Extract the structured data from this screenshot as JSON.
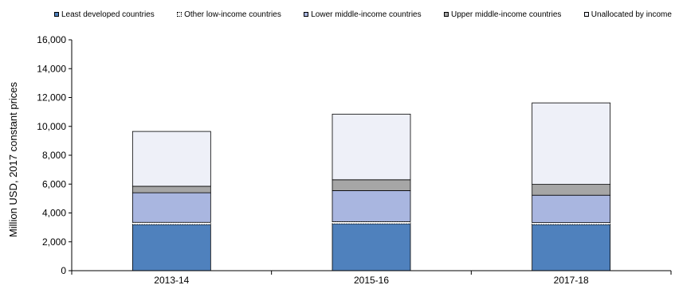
{
  "chart_data": {
    "type": "bar",
    "stacked": true,
    "title": "",
    "xlabel": "",
    "ylabel": "Million USD, 2017 constant prices",
    "ylim": [
      0,
      16000
    ],
    "yticks": [
      "0",
      "2,000",
      "4,000",
      "6,000",
      "8,000",
      "10,000",
      "12,000",
      "14,000",
      "16,000"
    ],
    "categories": [
      "2013-14",
      "2015-16",
      "2017-18"
    ],
    "legend_position": "top",
    "grid": false,
    "series": [
      {
        "name": "Least developed countries",
        "color": "#4f81bd",
        "values": [
          3200,
          3250,
          3200
        ]
      },
      {
        "name": "Other low-income countries",
        "color": "#ffffff",
        "values": [
          150,
          150,
          130
        ]
      },
      {
        "name": "Lower middle-income countries",
        "color": "#a9b6e0",
        "values": [
          2050,
          2150,
          1900
        ]
      },
      {
        "name": "Upper middle-income countries",
        "color": "#a6a6a6",
        "values": [
          450,
          750,
          750
        ]
      },
      {
        "name": "Unallocated by income",
        "color": "#eef0f8",
        "values": [
          3800,
          4550,
          5650
        ]
      }
    ]
  }
}
